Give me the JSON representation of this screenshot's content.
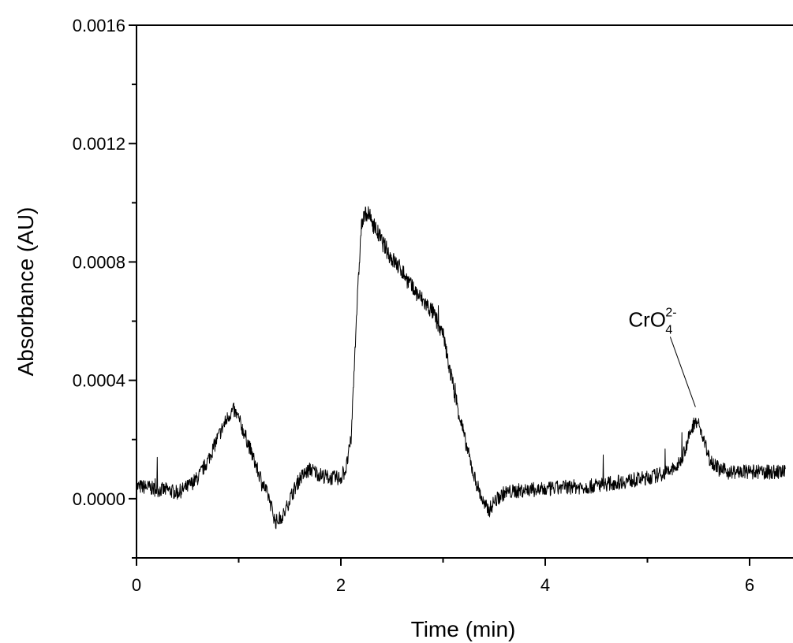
{
  "chart_data": {
    "type": "line",
    "xlabel": "Time (min)",
    "ylabel": "Absorbance (AU)",
    "xlim": [
      0,
      6.35
    ],
    "ylim": [
      -0.0002,
      0.0016
    ],
    "x_ticks": [
      "0",
      "2",
      "4",
      "6"
    ],
    "x_tick_values": [
      0,
      2,
      4,
      6
    ],
    "y_ticks": [
      "0.0000",
      "0.0004",
      "0.0008",
      "0.0012",
      "0.0016"
    ],
    "y_tick_values": [
      0,
      0.0004,
      0.0008,
      0.0012,
      0.0016
    ],
    "grid": false,
    "series": [
      {
        "color": "#000000",
        "x": [
          0.0,
          0.1,
          0.2,
          0.3,
          0.4,
          0.5,
          0.6,
          0.7,
          0.8,
          0.9,
          0.95,
          1.0,
          1.1,
          1.2,
          1.3,
          1.36,
          1.45,
          1.5,
          1.6,
          1.7,
          1.8,
          1.9,
          2.0,
          2.05,
          2.1,
          2.15,
          2.2,
          2.25,
          2.3,
          2.4,
          2.5,
          2.6,
          2.7,
          2.8,
          2.9,
          3.0,
          3.1,
          3.2,
          3.3,
          3.4,
          3.45,
          3.5,
          3.6,
          3.8,
          4.0,
          4.2,
          4.4,
          4.6,
          4.8,
          5.0,
          5.1,
          5.2,
          5.3,
          5.35,
          5.4,
          5.47,
          5.5,
          5.55,
          5.6,
          5.7,
          5.8,
          6.0,
          6.2,
          6.35
        ],
        "y": [
          4e-05,
          4e-05,
          3e-05,
          3e-05,
          2e-05,
          4e-05,
          7e-05,
          0.00013,
          0.00021,
          0.00028,
          0.0003,
          0.00027,
          0.00018,
          8e-05,
          0.0,
          -8e-05,
          -5e-05,
          0.0,
          7e-05,
          0.0001,
          8e-05,
          7e-05,
          7e-05,
          0.0001,
          0.0002,
          0.0006,
          0.00092,
          0.00097,
          0.00094,
          0.00087,
          0.00081,
          0.00077,
          0.00071,
          0.00067,
          0.00063,
          0.00055,
          0.00038,
          0.00022,
          8e-05,
          -2e-05,
          -4e-05,
          -1e-05,
          2e-05,
          3e-05,
          3e-05,
          4e-05,
          4e-05,
          5e-05,
          6e-05,
          7e-05,
          8e-05,
          9e-05,
          0.00011,
          0.00015,
          0.0002,
          0.00027,
          0.00025,
          0.0002,
          0.00014,
          0.0001,
          9e-05,
          9e-05,
          9e-05,
          9e-05
        ]
      }
    ],
    "annotations": [
      {
        "base": "CrO",
        "subscript": "4",
        "superscript": "2-",
        "x": 5.47,
        "y": 0.00031
      }
    ]
  }
}
